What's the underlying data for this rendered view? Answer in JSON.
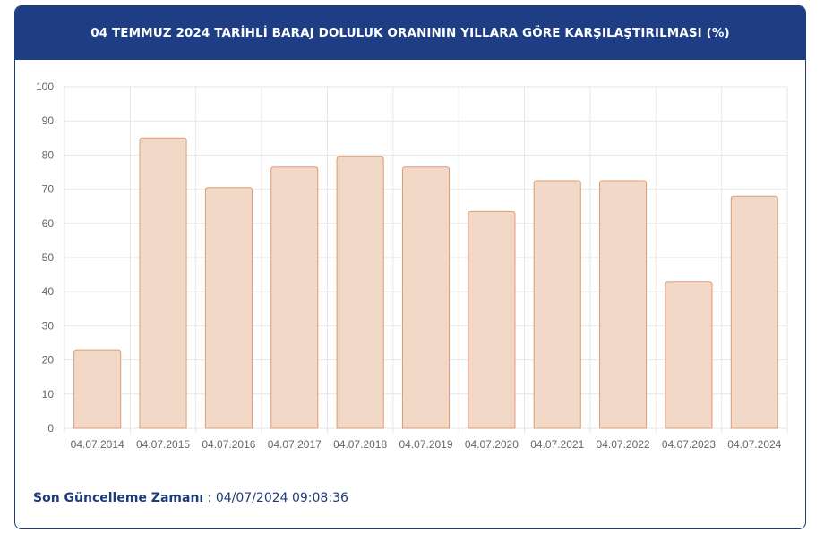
{
  "title": "04 TEMMUZ 2024 TARİHLİ BARAJ DOLULUK ORANININ YILLARA GÖRE KARŞILAŞTIRILMASI (%)",
  "footer": {
    "label": "Son Güncelleme Zamanı",
    "separator": " : ",
    "value": "04/07/2024 09:08:36"
  },
  "colors": {
    "header_bg": "#1e3d84",
    "bar_fill": "#f2d8c6",
    "bar_stroke": "#dd9c72",
    "grid": "#e6e6e6",
    "text_dark_blue": "#1e3d78"
  },
  "chart_data": {
    "type": "bar",
    "categories": [
      "04.07.2014",
      "04.07.2015",
      "04.07.2016",
      "04.07.2017",
      "04.07.2018",
      "04.07.2019",
      "04.07.2020",
      "04.07.2021",
      "04.07.2022",
      "04.07.2023",
      "04.07.2024"
    ],
    "values": [
      23,
      85,
      70.5,
      76.5,
      79.5,
      76.5,
      63.5,
      72.5,
      72.5,
      43,
      68
    ],
    "ylim": [
      0,
      100
    ],
    "yticks": [
      0,
      10,
      20,
      30,
      40,
      50,
      60,
      70,
      80,
      90,
      100
    ],
    "grid": true,
    "legend": false
  }
}
